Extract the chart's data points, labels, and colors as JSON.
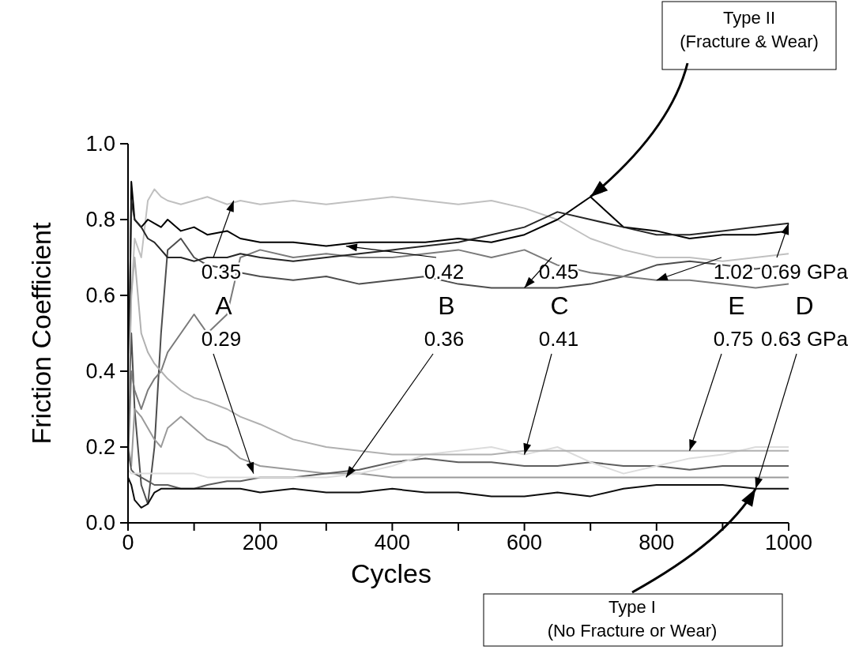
{
  "chart_data": {
    "type": "line",
    "xlabel": "Cycles",
    "ylabel": "Friction Coefficient",
    "x": [
      0,
      5,
      10,
      20,
      30,
      40,
      50,
      60,
      80,
      100,
      120,
      150,
      170,
      200,
      250,
      300,
      350,
      400,
      450,
      500,
      550,
      600,
      650,
      700,
      750,
      800,
      850,
      900,
      950,
      1000
    ],
    "xlim": [
      0,
      1000
    ],
    "xticks": [
      0,
      {
        "value": 100,
        "label": null
      },
      200,
      {
        "value": 300,
        "label": null
      },
      400,
      {
        "value": 500,
        "label": null
      },
      600,
      {
        "value": 700,
        "label": null
      },
      800,
      {
        "value": 900,
        "label": null
      },
      1000
    ],
    "ylim": [
      0,
      1
    ],
    "yticks": [
      {
        "value": 0,
        "label": "0.0"
      },
      0.2,
      0.4,
      0.6,
      0.8,
      {
        "value": 1,
        "label": "1.0"
      }
    ],
    "grid": false,
    "legend": false,
    "marker": "none",
    "line_style": "solid",
    "series": [
      {
        "color": "#c0c0c0",
        "values": [
          0.22,
          0.6,
          0.75,
          0.7,
          0.85,
          0.88,
          0.86,
          0.85,
          0.84,
          0.85,
          0.86,
          0.84,
          0.85,
          0.84,
          0.85,
          0.84,
          0.85,
          0.86,
          0.85,
          0.84,
          0.85,
          0.83,
          0.8,
          0.75,
          0.72,
          0.7,
          0.7,
          0.69,
          0.7,
          0.71
        ]
      },
      {
        "color": "#000000",
        "values": [
          0.18,
          0.9,
          0.8,
          0.78,
          0.8,
          0.79,
          0.78,
          0.8,
          0.77,
          0.78,
          0.76,
          0.77,
          0.75,
          0.74,
          0.74,
          0.73,
          0.74,
          0.74,
          0.74,
          0.75,
          0.74,
          0.76,
          0.8,
          0.86,
          0.78,
          0.77,
          0.75,
          0.76,
          0.76,
          0.77
        ]
      },
      {
        "color": "#4d4d4d",
        "values": [
          0.25,
          0.5,
          0.3,
          0.1,
          0.05,
          0.2,
          0.5,
          0.72,
          0.75,
          0.7,
          0.68,
          0.67,
          0.66,
          0.65,
          0.64,
          0.65,
          0.63,
          0.64,
          0.65,
          0.63,
          0.62,
          0.62,
          0.62,
          0.63,
          0.65,
          0.68,
          0.69,
          0.68,
          0.67,
          0.68
        ]
      },
      {
        "color": "#7a7a7a",
        "values": [
          0.16,
          0.4,
          0.35,
          0.3,
          0.35,
          0.38,
          0.4,
          0.45,
          0.5,
          0.55,
          0.5,
          0.55,
          0.7,
          0.72,
          0.7,
          0.71,
          0.7,
          0.7,
          0.71,
          0.72,
          0.7,
          0.72,
          0.68,
          0.66,
          0.65,
          0.64,
          0.64,
          0.63,
          0.62,
          0.63
        ]
      },
      {
        "color": "#262626",
        "values": [
          0.28,
          0.85,
          0.8,
          0.78,
          0.75,
          0.74,
          0.72,
          0.7,
          0.7,
          0.69,
          0.7,
          0.7,
          0.71,
          0.7,
          0.69,
          0.7,
          0.71,
          0.72,
          0.73,
          0.74,
          0.76,
          0.78,
          0.82,
          0.8,
          0.78,
          0.76,
          0.76,
          0.77,
          0.78,
          0.79
        ]
      },
      {
        "color": "#9a9a9a",
        "values": [
          0.21,
          0.15,
          0.3,
          0.28,
          0.25,
          0.22,
          0.2,
          0.25,
          0.28,
          0.25,
          0.22,
          0.2,
          0.17,
          0.15,
          0.14,
          0.13,
          0.13,
          0.12,
          0.12,
          0.12,
          0.12,
          0.12,
          0.12,
          0.12,
          0.12,
          0.12,
          0.12,
          0.12,
          0.12,
          0.12
        ]
      },
      {
        "color": "#5e5e5e",
        "values": [
          0.19,
          0.14,
          0.13,
          0.12,
          0.11,
          0.1,
          0.1,
          0.1,
          0.09,
          0.09,
          0.1,
          0.11,
          0.11,
          0.12,
          0.12,
          0.13,
          0.14,
          0.16,
          0.17,
          0.16,
          0.16,
          0.15,
          0.15,
          0.16,
          0.15,
          0.15,
          0.14,
          0.15,
          0.15,
          0.15
        ]
      },
      {
        "color": "#dcdcdc",
        "values": [
          0.14,
          0.13,
          0.13,
          0.13,
          0.13,
          0.13,
          0.13,
          0.13,
          0.13,
          0.13,
          0.12,
          0.12,
          0.12,
          0.12,
          0.12,
          0.12,
          0.13,
          0.15,
          0.18,
          0.19,
          0.2,
          0.18,
          0.2,
          0.16,
          0.13,
          0.15,
          0.17,
          0.18,
          0.2,
          0.2
        ]
      },
      {
        "color": "#b0b0b0",
        "values": [
          0.3,
          0.6,
          0.7,
          0.5,
          0.45,
          0.42,
          0.4,
          0.38,
          0.35,
          0.33,
          0.32,
          0.3,
          0.28,
          0.26,
          0.22,
          0.2,
          0.19,
          0.18,
          0.18,
          0.18,
          0.18,
          0.19,
          0.19,
          0.19,
          0.19,
          0.19,
          0.19,
          0.19,
          0.19,
          0.19
        ]
      },
      {
        "color": "#0d0d0d",
        "values": [
          0.12,
          0.1,
          0.06,
          0.04,
          0.05,
          0.08,
          0.09,
          0.09,
          0.09,
          0.09,
          0.09,
          0.09,
          0.09,
          0.08,
          0.09,
          0.08,
          0.08,
          0.09,
          0.08,
          0.08,
          0.07,
          0.07,
          0.08,
          0.07,
          0.09,
          0.1,
          0.1,
          0.1,
          0.09,
          0.09
        ]
      }
    ],
    "annotations": [
      {
        "text": "0.35",
        "x": 160,
        "y": 0.85
      },
      {
        "text": "0.42",
        "x": 330,
        "y": 0.73
      },
      {
        "text": "0.45",
        "x": 600,
        "y": 0.62
      },
      {
        "text": "1.02",
        "x": 800,
        "y": 0.64
      },
      {
        "text": "0.69 GPa",
        "x": 1000,
        "y": 0.79
      },
      "A",
      "B",
      "C",
      "E",
      "D",
      {
        "text": "0.29",
        "x": 190,
        "y": 0.13
      },
      {
        "text": "0.36",
        "x": 330,
        "y": 0.12
      },
      {
        "text": "0.41",
        "x": 600,
        "y": 0.18
      },
      {
        "text": "0.75",
        "x": 850,
        "y": 0.19
      },
      {
        "text": "0.63 GPa",
        "x": 950,
        "y": 0.09
      },
      {
        "text": "Type II\n(Fracture & Wear)",
        "x": 700,
        "y": 0.86
      },
      {
        "text": "Type I\n(No Fracture or Wear)",
        "x": 950,
        "y": 0.09
      }
    ]
  }
}
